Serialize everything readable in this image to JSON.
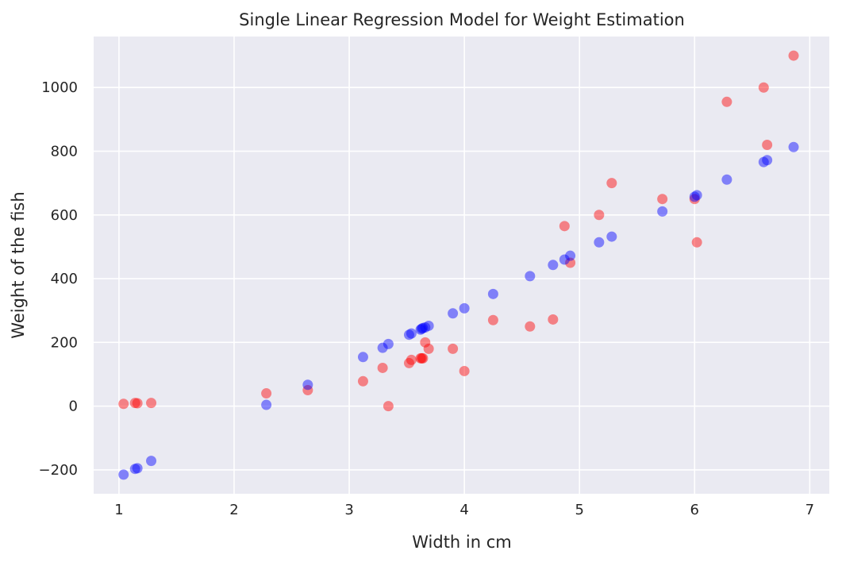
{
  "chart_data": {
    "type": "scatter",
    "title": "Single Linear Regression Model for Weight Estimation",
    "xlabel": "Width in cm",
    "ylabel": "Weight of the fish",
    "xlim": [
      0.78,
      7.17
    ],
    "ylim": [
      -275,
      1160
    ],
    "xticks": [
      1,
      2,
      3,
      4,
      5,
      6,
      7
    ],
    "yticks": [
      -200,
      0,
      200,
      400,
      600,
      800,
      1000
    ],
    "grid": true,
    "legend": "none",
    "background_color": "#eaeaf2",
    "grid_color": "#ffffff",
    "marker_alpha": 0.45,
    "series": [
      {
        "color": "#ff0000",
        "points": [
          [
            1.04,
            7
          ],
          [
            1.14,
            10
          ],
          [
            1.16,
            9
          ],
          [
            1.28,
            10
          ],
          [
            2.28,
            40
          ],
          [
            2.64,
            50
          ],
          [
            3.12,
            78
          ],
          [
            3.29,
            120
          ],
          [
            3.34,
            0
          ],
          [
            3.52,
            135
          ],
          [
            3.54,
            145
          ],
          [
            3.62,
            150
          ],
          [
            3.63,
            150
          ],
          [
            3.64,
            150
          ],
          [
            3.66,
            200
          ],
          [
            3.69,
            180
          ],
          [
            3.9,
            180
          ],
          [
            4.0,
            110
          ],
          [
            4.25,
            270
          ],
          [
            4.57,
            250
          ],
          [
            4.77,
            272
          ],
          [
            4.87,
            565
          ],
          [
            4.92,
            450
          ],
          [
            5.17,
            600
          ],
          [
            5.28,
            700
          ],
          [
            5.72,
            650
          ],
          [
            6.0,
            650
          ],
          [
            6.02,
            514
          ],
          [
            6.28,
            955
          ],
          [
            6.6,
            1000
          ],
          [
            6.63,
            820
          ],
          [
            6.86,
            1100
          ]
        ]
      },
      {
        "color": "#0000ff",
        "points": [
          [
            1.04,
            -215
          ],
          [
            1.14,
            -197
          ],
          [
            1.16,
            -195
          ],
          [
            1.28,
            -172
          ],
          [
            2.28,
            4
          ],
          [
            2.64,
            67
          ],
          [
            3.12,
            154
          ],
          [
            3.29,
            183
          ],
          [
            3.34,
            195
          ],
          [
            3.52,
            224
          ],
          [
            3.54,
            228
          ],
          [
            3.62,
            240
          ],
          [
            3.63,
            243
          ],
          [
            3.64,
            245
          ],
          [
            3.66,
            247
          ],
          [
            3.69,
            252
          ],
          [
            3.9,
            291
          ],
          [
            4.0,
            307
          ],
          [
            4.25,
            352
          ],
          [
            4.57,
            408
          ],
          [
            4.77,
            443
          ],
          [
            4.87,
            460
          ],
          [
            4.92,
            472
          ],
          [
            5.17,
            514
          ],
          [
            5.28,
            532
          ],
          [
            5.72,
            611
          ],
          [
            6.0,
            657
          ],
          [
            6.02,
            662
          ],
          [
            6.28,
            711
          ],
          [
            6.6,
            766
          ],
          [
            6.63,
            772
          ],
          [
            6.86,
            813
          ]
        ]
      }
    ]
  }
}
